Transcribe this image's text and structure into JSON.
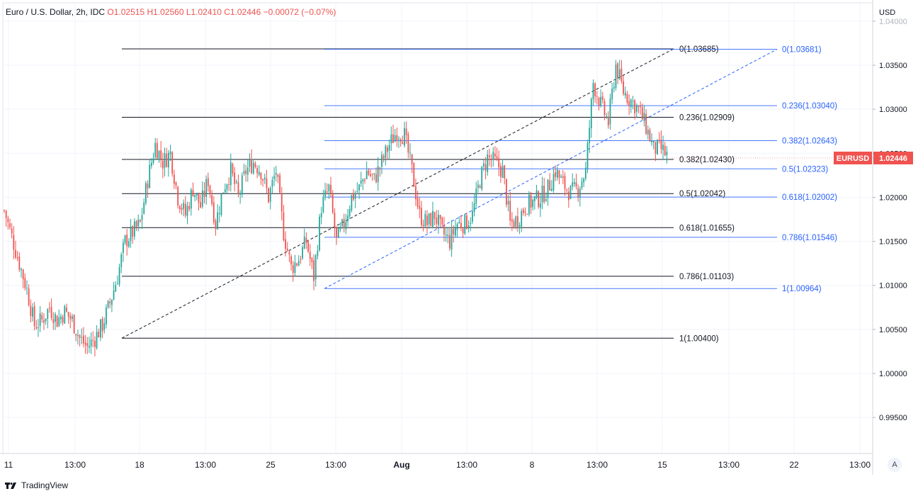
{
  "header": {
    "symbol_desc": "Euro / U.S. Dollar, 2h, IDC",
    "ohlc": "O1.02515  H1.02560  L1.02410  C1.02446  −0.00072 (−0.07%)"
  },
  "price_axis": {
    "currency": "USD"
  },
  "price_tag": {
    "label": "EURUSD",
    "value": "1.02446",
    "color": "#ef5350"
  },
  "auto_button": "A",
  "branding": "TradingView",
  "colors": {
    "up": "#26a69a",
    "down": "#ef5350",
    "fib_black": "#131722",
    "fib_blue": "#2962ff",
    "blue_text": "#2962ff"
  },
  "chart_data": {
    "type": "candlestick",
    "ylim": [
      0.993,
      1.0385
    ],
    "y_ticks": [
      "0.99500",
      "1.00000",
      "1.00500",
      "1.01000",
      "1.01500",
      "1.02000",
      "1.02500",
      "1.03000",
      "1.03500",
      "1.04000"
    ],
    "y_tick_values": [
      0.995,
      1.0,
      1.005,
      1.01,
      1.015,
      1.02,
      1.025,
      1.03,
      1.035,
      1.04
    ],
    "x_ticks": [
      "11",
      "13:00",
      "18",
      "13:00",
      "25",
      "13:00",
      "Aug",
      "13:00",
      "8",
      "13:00",
      "15",
      "13:00",
      "22",
      "13:00"
    ],
    "x_tick_bold": [
      false,
      false,
      false,
      false,
      false,
      false,
      true,
      false,
      false,
      false,
      false,
      false,
      false,
      false
    ],
    "bars": 186,
    "close_path": [
      [
        0,
        1.0185
      ],
      [
        4,
        1.0155
      ],
      [
        8,
        1.0125
      ],
      [
        12,
        1.0095
      ],
      [
        16,
        1.0055
      ],
      [
        20,
        1.006
      ],
      [
        24,
        1.0075
      ],
      [
        28,
        1.006
      ],
      [
        32,
        1.007
      ],
      [
        36,
        1.006
      ],
      [
        40,
        1.004
      ],
      [
        44,
        1.003
      ],
      [
        48,
        1.004
      ],
      [
        52,
        1.0055
      ],
      [
        56,
        1.008
      ],
      [
        60,
        1.011
      ],
      [
        64,
        1.015
      ],
      [
        68,
        1.016
      ],
      [
        72,
        1.017
      ],
      [
        76,
        1.022
      ],
      [
        80,
        1.026
      ],
      [
        84,
        1.024
      ],
      [
        88,
        1.025
      ],
      [
        92,
        1.02
      ],
      [
        96,
        1.018
      ],
      [
        100,
        1.021
      ],
      [
        104,
        1.019
      ],
      [
        108,
        1.022
      ],
      [
        112,
        1.017
      ],
      [
        116,
        1.021
      ],
      [
        120,
        1.023
      ],
      [
        124,
        1.02
      ],
      [
        128,
        1.023
      ],
      [
        132,
        1.024
      ],
      [
        136,
        1.023
      ],
      [
        140,
        1.02
      ],
      [
        144,
        1.023
      ],
      [
        148,
        1.016
      ],
      [
        152,
        1.012
      ],
      [
        156,
        1.013
      ],
      [
        160,
        1.015
      ],
      [
        164,
        1.011
      ],
      [
        168,
        1.019
      ],
      [
        172,
        1.021
      ],
      [
        176,
        1.015
      ],
      [
        180,
        1.017
      ],
      [
        184,
        1.02
      ],
      [
        188,
        1.021
      ],
      [
        192,
        1.023
      ],
      [
        196,
        1.022
      ],
      [
        200,
        1.024
      ],
      [
        204,
        1.026
      ],
      [
        208,
        1.0275
      ],
      [
        212,
        1.027
      ],
      [
        216,
        1.023
      ],
      [
        220,
        1.018
      ],
      [
        224,
        1.017
      ],
      [
        228,
        1.018
      ],
      [
        232,
        1.016
      ],
      [
        236,
        1.015
      ],
      [
        240,
        1.017
      ],
      [
        244,
        1.017
      ],
      [
        248,
        1.018
      ],
      [
        252,
        1.022
      ],
      [
        256,
        1.0245
      ],
      [
        260,
        1.024
      ],
      [
        264,
        1.023
      ],
      [
        268,
        1.017
      ],
      [
        272,
        1.0175
      ],
      [
        276,
        1.019
      ],
      [
        280,
        1.0195
      ],
      [
        284,
        1.02
      ],
      [
        288,
        1.021
      ],
      [
        292,
        1.023
      ],
      [
        296,
        1.0215
      ],
      [
        300,
        1.0205
      ],
      [
        304,
        1.021
      ],
      [
        308,
        1.023
      ],
      [
        312,
        1.033
      ],
      [
        316,
        1.0305
      ],
      [
        320,
        1.0285
      ],
      [
        324,
        1.035
      ],
      [
        328,
        1.032
      ],
      [
        332,
        1.031
      ],
      [
        336,
        1.03
      ],
      [
        340,
        1.028
      ],
      [
        344,
        1.0255
      ],
      [
        348,
        1.0255
      ],
      [
        352,
        1.02446
      ]
    ],
    "fib_black": {
      "levels": [
        [
          "0(1.03685)",
          1.03685
        ],
        [
          "0.236(1.02909)",
          1.02909
        ],
        [
          "0.382(1.02430)",
          1.0243
        ],
        [
          "0.5(1.02042)",
          1.02042
        ],
        [
          "0.618(1.01655)",
          1.01655
        ],
        [
          "0.786(1.01103)",
          1.01103
        ],
        [
          "1(1.00400)",
          1.004
        ]
      ]
    },
    "fib_blue": {
      "levels": [
        [
          "0(1.03681)",
          1.03681
        ],
        [
          "0.236(1.03040)",
          1.0304
        ],
        [
          "0.382(1.02643)",
          1.02643
        ],
        [
          "0.5(1.02323)",
          1.02323
        ],
        [
          "0.618(1.02002)",
          1.02002
        ],
        [
          "0.786(1.01546)",
          1.01546
        ],
        [
          "1(1.00964)",
          1.00964
        ]
      ]
    }
  }
}
